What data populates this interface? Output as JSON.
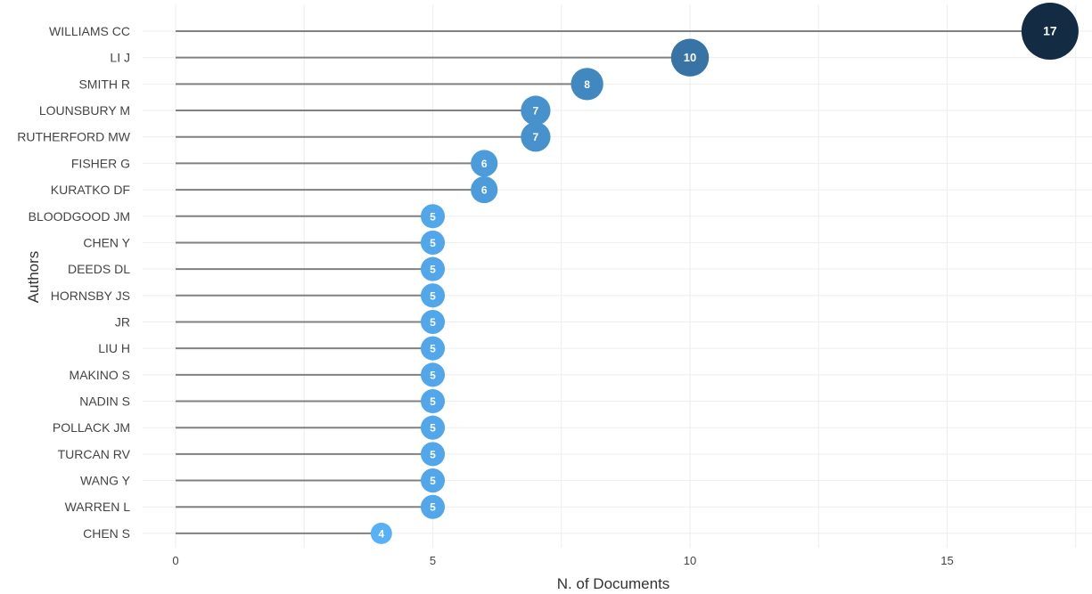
{
  "chart_data": {
    "type": "scatter",
    "style": "lollipop",
    "xlabel": "N. of Documents",
    "ylabel": "Authors",
    "xlim": [
      0,
      17.6
    ],
    "xticks": [
      0,
      5,
      10,
      15
    ],
    "grid": true,
    "legend": "none",
    "colors": {
      "min": "#56b1f7",
      "max": "#132b43",
      "stem": "#808080",
      "grid": "#eeeeee"
    },
    "categories": [
      "WILLIAMS CC",
      "LI J",
      "SMITH R",
      "LOUNSBURY M",
      "RUTHERFORD MW",
      "FISHER G",
      "KURATKO DF",
      "BLOODGOOD JM",
      "CHEN Y",
      "DEEDS DL",
      "HORNSBY JS",
      "JR",
      "LIU H",
      "MAKINO S",
      "NADIN S",
      "POLLACK JM",
      "TURCAN RV",
      "WANG Y",
      "WARREN L",
      "CHEN S"
    ],
    "values": [
      17,
      10,
      8,
      7,
      7,
      6,
      6,
      5,
      5,
      5,
      5,
      5,
      5,
      5,
      5,
      5,
      5,
      5,
      5,
      4
    ]
  }
}
